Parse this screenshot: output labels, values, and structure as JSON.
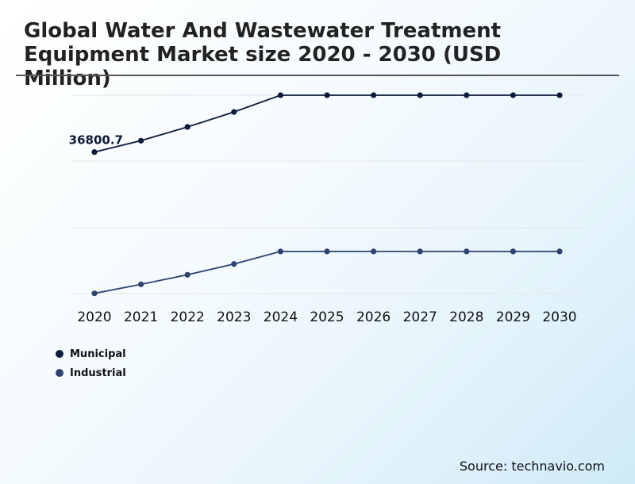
{
  "title": "Global Water And Wastewater Treatment Equipment Market size 2020 - 2030 (USD Million)",
  "source": "Source: technavio.com",
  "colors": {
    "municipal": "#0c1a3c",
    "industrial": "#2c4270",
    "grid": "#e6e6e6",
    "title_rule": "#555555"
  },
  "chart_data": {
    "type": "line",
    "title": "Global Water And Wastewater Treatment Equipment Market size 2020 - 2030 (USD Million)",
    "xlabel": "",
    "ylabel": "",
    "x": [
      "2020",
      "2021",
      "2022",
      "2023",
      "2024",
      "2025",
      "2026",
      "2027",
      "2028",
      "2029",
      "2030"
    ],
    "series": [
      {
        "name": "Municipal",
        "values": [
          36800.7,
          37750,
          38900,
          40150,
          41550,
          41550,
          41550,
          41550,
          41550,
          41550,
          41550
        ],
        "labels": [
          "36800.7",
          "",
          "",
          "",
          "",
          "",
          "",
          "",
          "",
          "",
          ""
        ]
      },
      {
        "name": "Industrial",
        "values": [
          25000,
          25750,
          26550,
          27450,
          28500,
          28500,
          28500,
          28500,
          28500,
          28500,
          28500
        ],
        "labels": [
          "",
          "",
          "",
          "",
          "",
          "",
          "",
          "",
          "",
          "",
          ""
        ]
      }
    ],
    "ylim": [
      24980,
      41550
    ],
    "y_ticks_labeled": false,
    "grid": true,
    "legend_position": "bottom-left"
  }
}
